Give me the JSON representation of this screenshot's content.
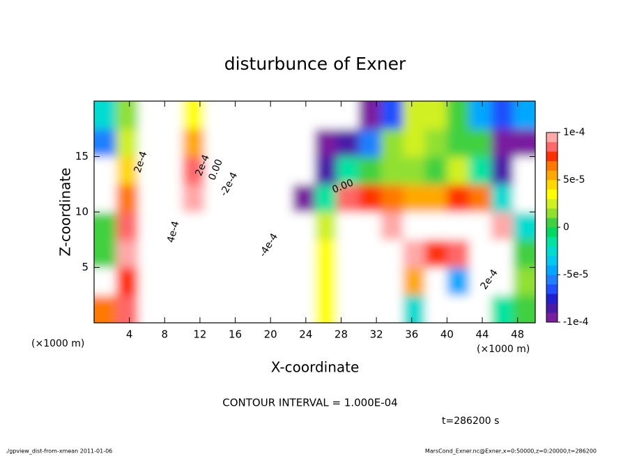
{
  "chart_data": {
    "type": "heatmap",
    "title": "disturbunce of Exner",
    "xlabel": "X-coordinate",
    "ylabel": "Z-coordinate",
    "xunit": "(×1000 m)",
    "contour_interval": "CONTOUR INTERVAL = 1.000E-04",
    "time_label": "t=286200 s",
    "footer_left": "./gpview_dist-from-xmean  2011-01-06",
    "footer_right": "MarsCond_Exner.nc@Exner,x=0:50000,z=0:20000,t=286200",
    "xlim": [
      0,
      50
    ],
    "ylim": [
      0,
      20
    ],
    "xticks": [
      4,
      8,
      12,
      16,
      20,
      24,
      28,
      32,
      36,
      40,
      44,
      48
    ],
    "yticks": [
      5,
      10,
      15
    ],
    "zlim": [
      -0.0001,
      0.0001
    ],
    "zticks": [
      {
        "value": 0.0001,
        "label": "1e-4"
      },
      {
        "value": 5e-05,
        "label": "5e-5"
      },
      0,
      {
        "value": -5e-05,
        "label": "-5e-5"
      },
      {
        "value": -0.0001,
        "label": "-1e-4"
      }
    ],
    "colors": [
      "#7a1ea0",
      "#4a1aa8",
      "#2020d0",
      "#1e50ff",
      "#1e80ff",
      "#00a8ff",
      "#00c8f0",
      "#00dcd0",
      "#00e4a0",
      "#00d860",
      "#40d040",
      "#90e030",
      "#d0f020",
      "#ffff00",
      "#ffd800",
      "#ffa800",
      "#ff7800",
      "#ff3000",
      "#ff6868",
      "#ffa8a8"
    ],
    "x": [
      1.25,
      3.75,
      6.25,
      8.75,
      11.25,
      13.75,
      16.25,
      18.75,
      21.25,
      23.75,
      26.25,
      28.75,
      31.25,
      33.75,
      36.25,
      38.75,
      41.25,
      43.75,
      46.25,
      48.75
    ],
    "y": [
      1.25,
      3.75,
      6.25,
      8.75,
      11.25,
      13.75,
      16.25,
      18.75
    ],
    "z": [
      [
        6e-05,
        8e-05,
        0.00025,
        0.0004,
        0.0002,
        -0.00015,
        -0.0002,
        -0.00025,
        -0.0002,
        -0.00015,
        3e-05,
        0.00015,
        0.00015,
        0.0002,
        -3e-05,
        -0.00015,
        -0.00012,
        0.00015,
        -2e-05,
        0
      ],
      [
        -0.00012,
        7e-05,
        0.0003,
        0.00035,
        0.00015,
        -0.0002,
        -0.0003,
        -0.00025,
        -0.0002,
        -0.00015,
        3e-05,
        0.00015,
        0.00015,
        0.00015,
        5e-05,
        -0.00015,
        -5e-05,
        0.00015,
        0.00015,
        1e-05
      ],
      [
        0,
        9e-05,
        0.0003,
        0.0004,
        0.00015,
        -0.0003,
        -0.00045,
        -0.0003,
        -0.0002,
        -0.00015,
        3e-05,
        0.00015,
        0.00015,
        0.00015,
        0.0001,
        7e-05,
        8e-05,
        0.00015,
        0.00015,
        0
      ],
      [
        0,
        8e-05,
        0.0003,
        0.00035,
        0.00012,
        -0.00025,
        -0.0004,
        -0.0003,
        -0.0002,
        -0.00012,
        2e-05,
        0.00015,
        0.00015,
        0.0001,
        0.00015,
        0.00015,
        0.00015,
        0.00015,
        0.0001,
        -3e-05
      ],
      [
        -0.00012,
        6e-05,
        0.0003,
        0.0003,
        0.0001,
        -0.00015,
        -0.00025,
        -0.00025,
        -0.00015,
        -0.0001,
        -2e-05,
        8e-05,
        7e-05,
        6e-05,
        5e-05,
        5e-05,
        7e-05,
        6e-05,
        -3e-05,
        -0.00012
      ],
      [
        -0.00012,
        4e-05,
        0.00025,
        0.0003,
        8e-05,
        -0.00012,
        -0.0002,
        -0.0002,
        -0.00015,
        -0.00012,
        -8e-05,
        -2e-05,
        0,
        1e-05,
        1e-05,
        0,
        2e-05,
        -2e-05,
        -8e-05,
        -0.00012
      ],
      [
        -6e-05,
        2e-05,
        0.0002,
        0.00025,
        5e-05,
        -0.00012,
        -0.00015,
        -0.00018,
        -0.00015,
        -0.00012,
        -0.0001,
        -8e-05,
        -6e-05,
        1e-05,
        2e-05,
        1e-05,
        0,
        0,
        -0.0001,
        -9e-05
      ],
      [
        -3e-05,
        1e-05,
        0.00015,
        0.0002,
        3e-05,
        -0.00012,
        -0.00012,
        -0.00012,
        -0.00012,
        -0.00012,
        -0.00011,
        -0.00012,
        -9e-05,
        -7e-05,
        2e-05,
        2e-05,
        0,
        -5e-05,
        -7e-05,
        -5e-05
      ]
    ],
    "contour_labels": [
      {
        "value": 0.0002,
        "label": "2e-4",
        "x": 5.3,
        "y": 14.5
      },
      {
        "value": 0.0002,
        "label": "2e-4",
        "x": 12.3,
        "y": 14.2
      },
      {
        "value": 0,
        "label": "0.00",
        "x": 13.8,
        "y": 13.8
      },
      {
        "value": -0.0002,
        "label": "-2e-4",
        "x": 15.3,
        "y": 12.5
      },
      {
        "value": 0.0004,
        "label": "4e-4",
        "x": 9.0,
        "y": 8.2
      },
      {
        "value": -0.0004,
        "label": "-4e-4",
        "x": 19.8,
        "y": 7.0
      },
      {
        "value": 0,
        "label": "0.00",
        "x": 28.2,
        "y": 12.3
      },
      {
        "value": 0.0002,
        "label": "2e-4",
        "x": 44.8,
        "y": 3.9
      }
    ]
  }
}
